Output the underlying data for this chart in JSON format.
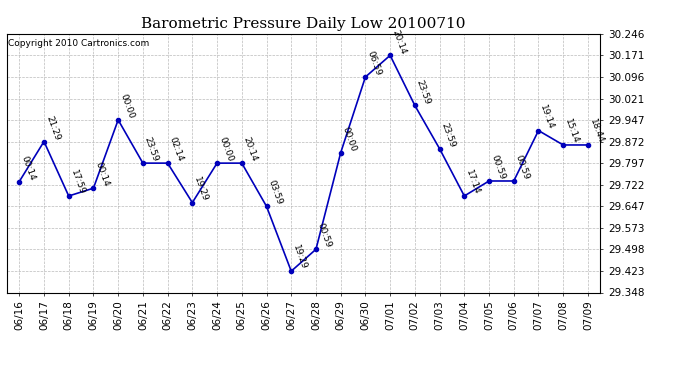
{
  "title": "Barometric Pressure Daily Low 20100710",
  "copyright": "Copyright 2010 Cartronics.com",
  "dates": [
    "06/16",
    "06/17",
    "06/18",
    "06/19",
    "06/20",
    "06/21",
    "06/22",
    "06/23",
    "06/24",
    "06/25",
    "06/26",
    "06/27",
    "06/28",
    "06/29",
    "06/30",
    "07/01",
    "07/02",
    "07/03",
    "07/04",
    "07/05",
    "07/06",
    "07/07",
    "07/08",
    "07/09"
  ],
  "values": [
    29.733,
    29.872,
    29.683,
    29.71,
    29.947,
    29.797,
    29.797,
    29.66,
    29.797,
    29.797,
    29.647,
    29.422,
    29.498,
    29.833,
    30.096,
    30.171,
    29.997,
    29.847,
    29.683,
    29.735,
    29.735,
    29.91,
    29.86,
    29.86
  ],
  "time_labels": [
    "00:14",
    "21:29",
    "17:59",
    "00:14",
    "00:00",
    "23:59",
    "02:14",
    "19:29",
    "00:00",
    "20:14",
    "03:59",
    "19:29",
    "00:59",
    "00:00",
    "06:59",
    "20:14",
    "23:59",
    "23:59",
    "17:14",
    "00:59",
    "00:59",
    "19:14",
    "15:14",
    "18:44"
  ],
  "ylim": [
    29.348,
    30.246
  ],
  "yticks": [
    29.348,
    29.423,
    29.498,
    29.573,
    29.647,
    29.722,
    29.797,
    29.872,
    29.947,
    30.021,
    30.096,
    30.171,
    30.246
  ],
  "line_color": "#0000bb",
  "marker_color": "#0000bb",
  "bg_color": "#ffffff",
  "grid_color": "#aaaaaa",
  "title_fontsize": 11,
  "label_fontsize": 6.5,
  "tick_fontsize": 7.5,
  "copyright_fontsize": 6.5
}
